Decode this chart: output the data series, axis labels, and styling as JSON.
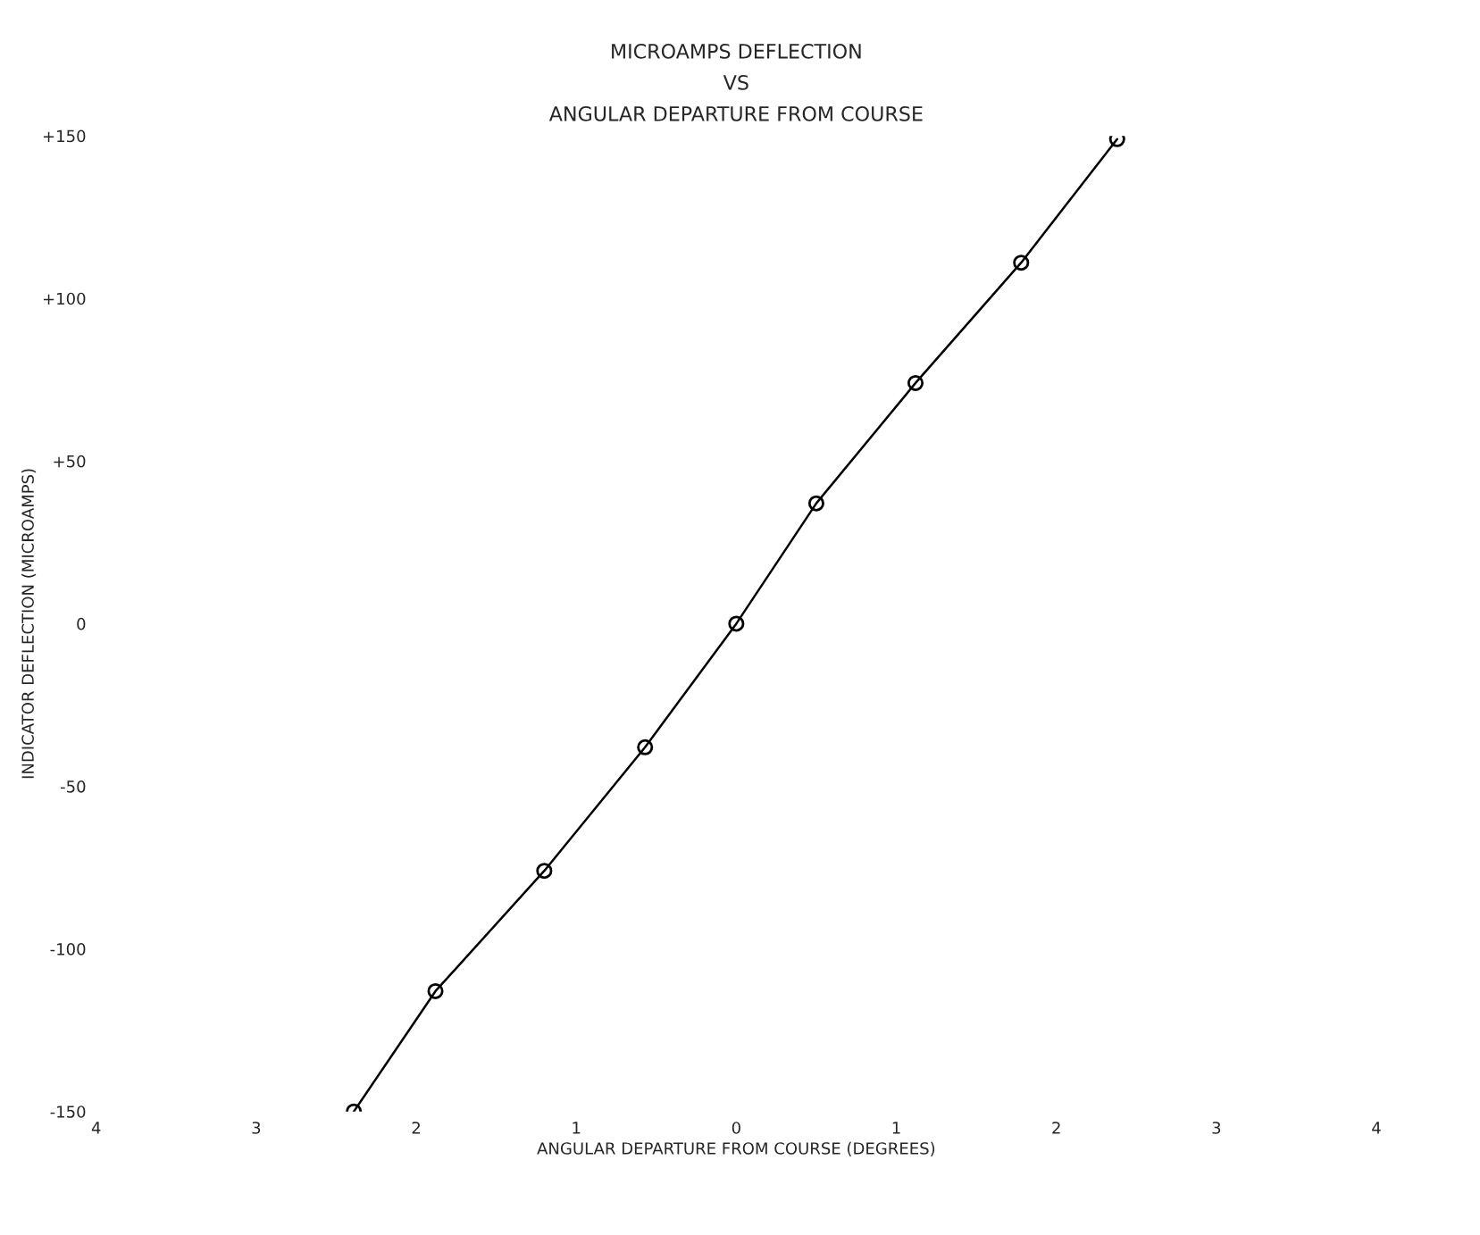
{
  "chart_data": {
    "type": "line",
    "title": "MICROAMPS DEFLECTION\nVS\nANGULAR DEPARTURE FROM COURSE",
    "xlabel": "ANGULAR DEPARTURE FROM COURSE (DEGREES)",
    "ylabel": "INDICATOR DEFLECTION (MICROAMPS)",
    "x": [
      -2.39,
      -1.88,
      -1.2,
      -0.57,
      0,
      0.5,
      1.12,
      1.78,
      2.38
    ],
    "series": [
      {
        "color": "#000000",
        "values": [
          -150,
          -113,
          -76,
          -38,
          0,
          37,
          74,
          111,
          149
        ]
      }
    ],
    "xlim": [
      -4,
      4
    ],
    "ylim": [
      -150,
      150
    ],
    "xticks": [
      {
        "value": -4,
        "label": "4"
      },
      {
        "value": -3,
        "label": "3"
      },
      {
        "value": -2,
        "label": "2"
      },
      {
        "value": -1,
        "label": "1"
      },
      0,
      1,
      2,
      3,
      4
    ],
    "yticks": [
      {
        "value": -150,
        "label": "-150"
      },
      {
        "value": -100,
        "label": "-100"
      },
      {
        "value": -50,
        "label": "-50"
      },
      0,
      {
        "value": 50,
        "label": "+50"
      },
      {
        "value": 100,
        "label": "+100"
      },
      {
        "value": 150,
        "label": "+150"
      }
    ],
    "marker": "circle",
    "line_style": "solid",
    "grid": false,
    "legend": false
  }
}
